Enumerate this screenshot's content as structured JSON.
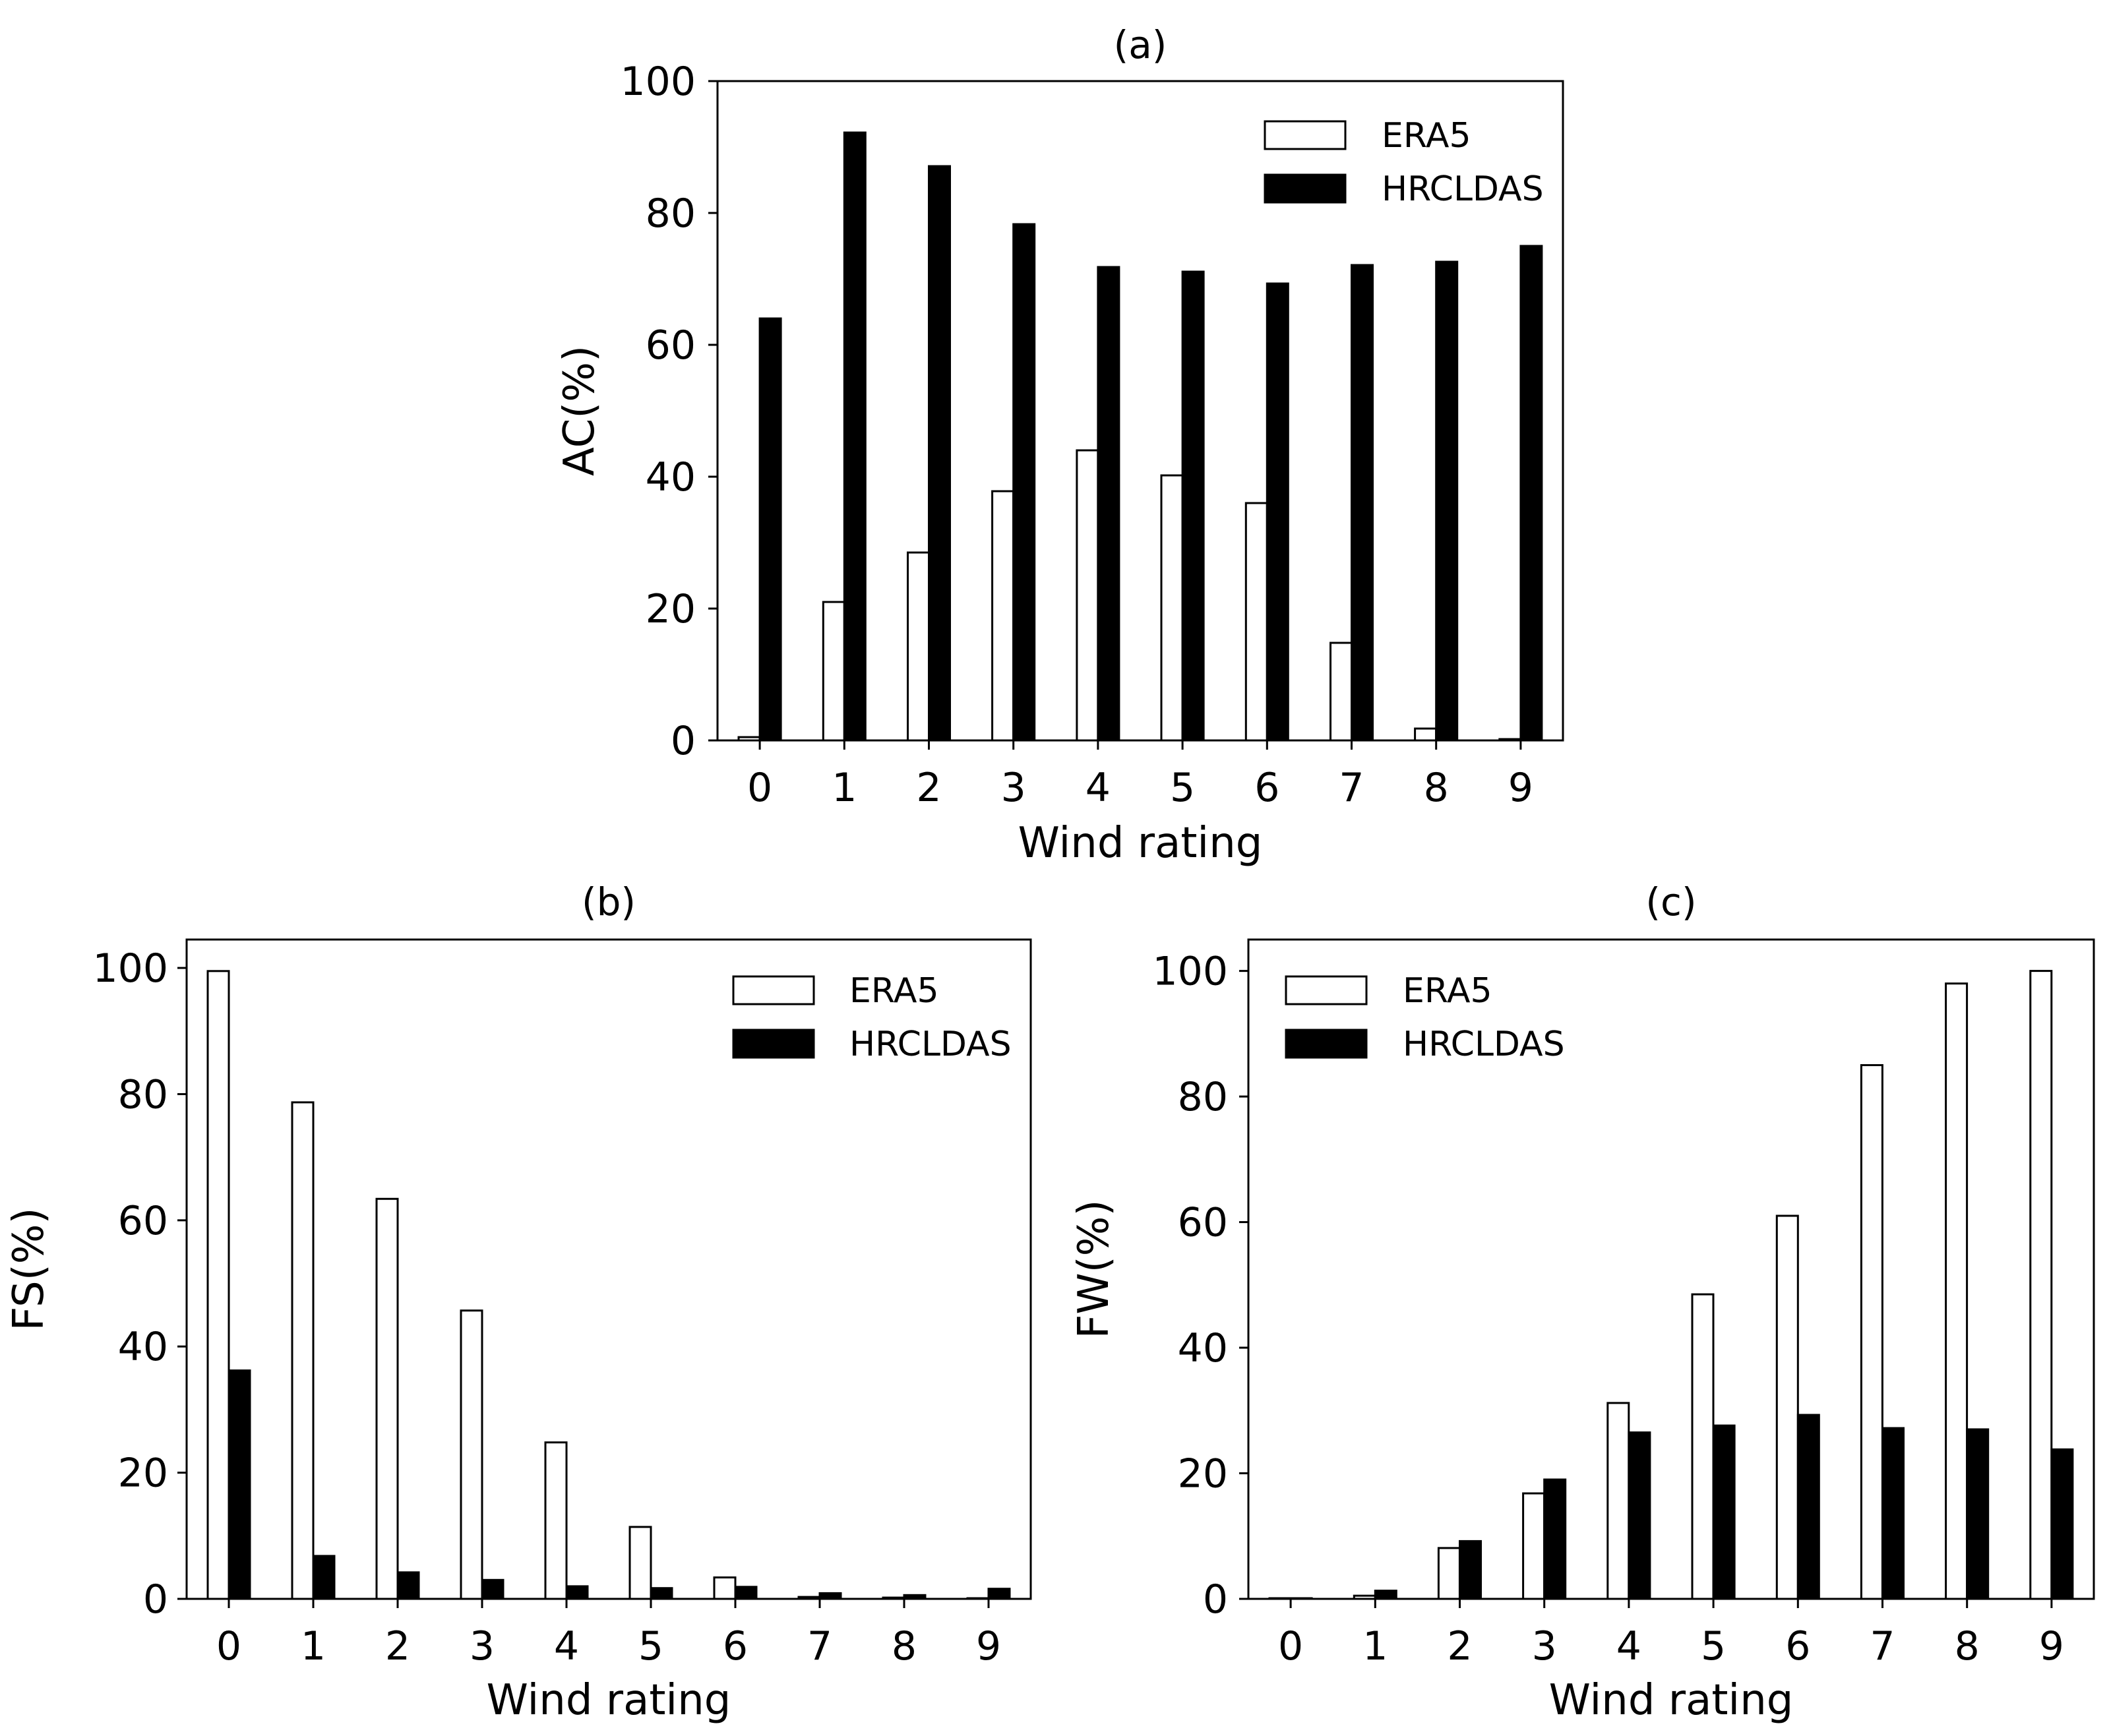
{
  "colors": {
    "era5": "#ffffff",
    "hrcldas": "#000000",
    "stroke": "#000000"
  },
  "chart_data": [
    {
      "id": "a",
      "type": "bar",
      "title": "(a)",
      "xlabel": "Wind rating",
      "ylabel": "AC(%)",
      "categories": [
        "0",
        "1",
        "2",
        "3",
        "4",
        "5",
        "6",
        "7",
        "8",
        "9"
      ],
      "yticks": [
        "0",
        "20",
        "40",
        "60",
        "80",
        "100"
      ],
      "ylim": [
        0,
        100
      ],
      "legend_position": "top-right",
      "series": [
        {
          "name": "ERA5",
          "values": [
            0.5,
            21,
            28.5,
            37.8,
            44,
            40.2,
            36,
            14.8,
            1.8,
            0.2
          ]
        },
        {
          "name": "HRCLDAS",
          "values": [
            64,
            92.2,
            87.1,
            78.3,
            71.8,
            71.1,
            69.3,
            72.1,
            72.6,
            75
          ]
        }
      ]
    },
    {
      "id": "b",
      "type": "bar",
      "title": "(b)",
      "xlabel": "Wind rating",
      "ylabel": "FS(%)",
      "categories": [
        "0",
        "1",
        "2",
        "3",
        "4",
        "5",
        "6",
        "7",
        "8",
        "9"
      ],
      "yticks": [
        "0",
        "20",
        "40",
        "60",
        "80",
        "100"
      ],
      "ylim": [
        0,
        104.5
      ],
      "legend_position": "top-right",
      "series": [
        {
          "name": "ERA5",
          "values": [
            99.5,
            78.7,
            63.4,
            45.7,
            24.8,
            11.4,
            3.4,
            0.3,
            0.2,
            0.1
          ]
        },
        {
          "name": "HRCLDAS",
          "values": [
            36.2,
            6.8,
            4.2,
            3.0,
            2.0,
            1.7,
            1.9,
            0.9,
            0.6,
            1.6
          ]
        }
      ]
    },
    {
      "id": "c",
      "type": "bar",
      "title": "(c)",
      "xlabel": "Wind rating",
      "ylabel": "FW(%)",
      "categories": [
        "0",
        "1",
        "2",
        "3",
        "4",
        "5",
        "6",
        "7",
        "8",
        "9"
      ],
      "yticks": [
        "0",
        "20",
        "40",
        "60",
        "80",
        "100"
      ],
      "ylim": [
        0,
        105
      ],
      "legend_position": "top-left",
      "series": [
        {
          "name": "ERA5",
          "values": [
            0.1,
            0.5,
            8.1,
            16.8,
            31.2,
            48.5,
            61.0,
            85.0,
            98.0,
            100.0
          ]
        },
        {
          "name": "HRCLDAS",
          "values": [
            0.1,
            1.3,
            9.2,
            19.0,
            26.5,
            27.6,
            29.3,
            27.2,
            27.0,
            23.8
          ]
        }
      ]
    }
  ]
}
